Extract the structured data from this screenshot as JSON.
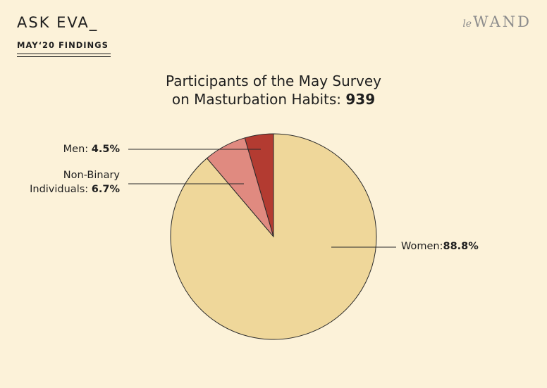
{
  "header": {
    "brand": "ASK EVA_",
    "subtitle": "MAY‘20 FINDINGS",
    "logo_prefix": "le",
    "logo_main": "WAND"
  },
  "chart_title": {
    "line1": "Participants of the May Survey",
    "line2": "on Masturbation Habits:",
    "total": "939"
  },
  "labels": {
    "men_name": "Men:",
    "men_value": "4.5%",
    "nb_line1": "Non-Binary",
    "nb_line2": "Individuals:",
    "nb_value": "6.7%",
    "women_name": "Women:",
    "women_value": "88.8%"
  },
  "chart_data": {
    "type": "pie",
    "title": "Participants of the May Survey on Masturbation Habits: 939",
    "total": 939,
    "slices": [
      {
        "name": "Women",
        "value": 88.8,
        "color": "#efd79a"
      },
      {
        "name": "Non-Binary Individuals",
        "value": 6.7,
        "color": "#e08a80"
      },
      {
        "name": "Men",
        "value": 4.5,
        "color": "#b33b31"
      }
    ]
  }
}
